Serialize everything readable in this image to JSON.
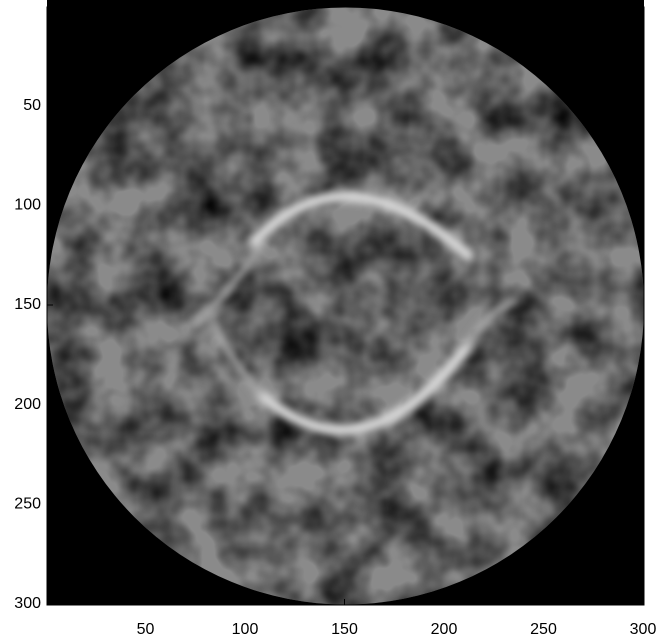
{
  "chart_data": {
    "type": "image",
    "colormap": "gray",
    "y_direction": "reverse",
    "xlim": [
      0.5,
      300.5
    ],
    "ylim": [
      0.5,
      300.5
    ],
    "xticks": [
      50,
      100,
      150,
      200,
      250,
      300
    ],
    "yticks": [
      50,
      100,
      150,
      200,
      250,
      300
    ]
  }
}
